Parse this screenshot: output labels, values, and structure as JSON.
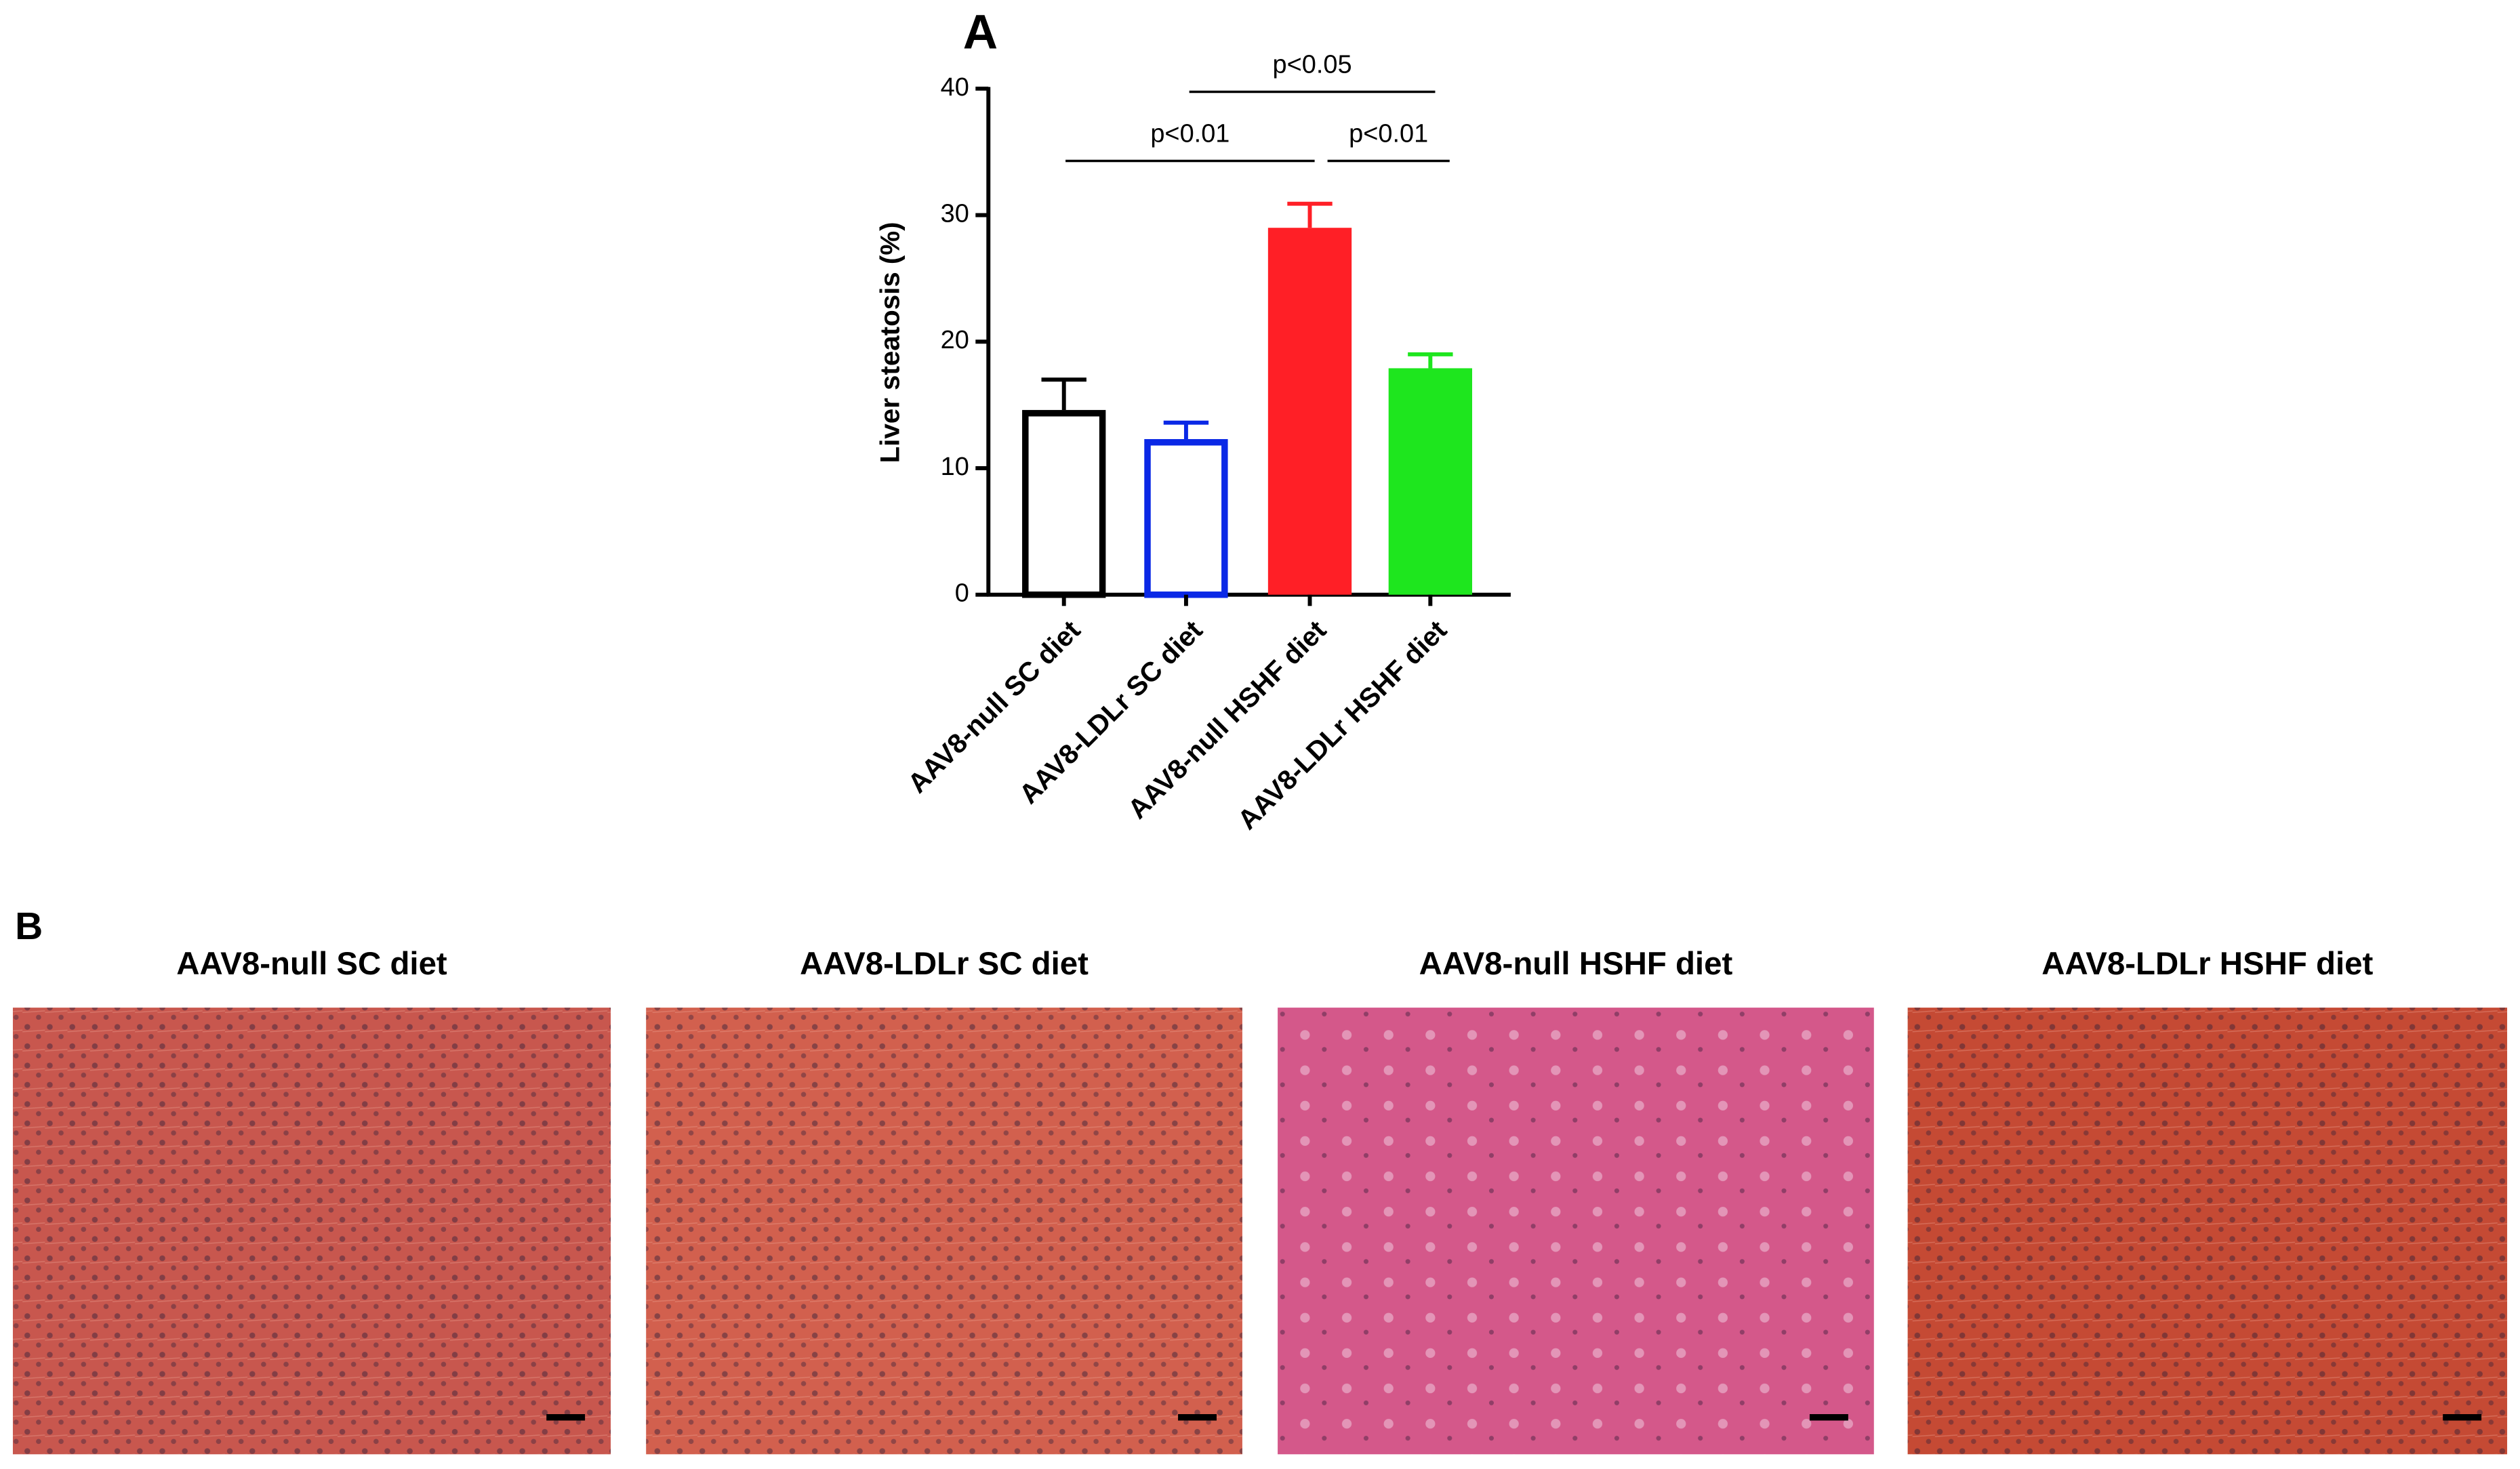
{
  "chart_data": {
    "type": "bar",
    "panel_label": "A",
    "y_label": "Liver steatosis (%)",
    "categories": [
      "AAV8-null SC diet",
      "AAV8-LDLr SC diet",
      "AAV8-null HSHF diet",
      "AAV8-LDLr HSHF diet"
    ],
    "values": [
      14.6,
      12.3,
      29.0,
      17.9
    ],
    "errors": [
      2.4,
      1.3,
      1.9,
      1.1
    ],
    "colors": [
      "#000000",
      "#0a28e6",
      "#ff1f26",
      "#1ee61e"
    ],
    "fill_styles": [
      "outline",
      "outline",
      "solid",
      "solid"
    ],
    "ylim": [
      0,
      40
    ],
    "yticks": [
      0,
      10,
      20,
      30,
      40
    ],
    "annotations": [
      "p<0.05",
      "p<0.01",
      "p<0.01"
    ]
  },
  "panel_b": {
    "label": "B",
    "images": [
      "AAV8-null SC diet",
      "AAV8-LDLr SC diet",
      "AAV8-null HSHF diet",
      "AAV8-LDLr HSHF diet"
    ]
  }
}
